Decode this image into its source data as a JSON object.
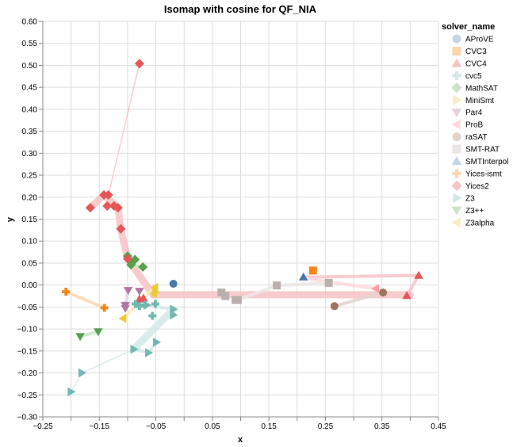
{
  "chart_data": {
    "type": "scatter",
    "title": "Isomap with cosine for QF_NIA",
    "xlabel": "x",
    "ylabel": "y",
    "xlim": [
      -0.25,
      0.45
    ],
    "ylim": [
      -0.3,
      0.6
    ],
    "grid": true,
    "x_ticks": [
      "−0.25",
      "−0.15",
      "−0.05",
      "0.05",
      "0.15",
      "0.25",
      "0.35",
      "0.45"
    ],
    "x_tick_values": [
      -0.25,
      -0.15,
      -0.05,
      0.05,
      0.15,
      0.25,
      0.35,
      0.45
    ],
    "x_grid_values": [
      -0.25,
      -0.2,
      -0.15,
      -0.1,
      -0.05,
      0.0,
      0.05,
      0.1,
      0.15,
      0.2,
      0.25,
      0.3,
      0.35,
      0.4,
      0.45
    ],
    "y_ticks": [
      "0.60",
      "0.55",
      "0.50",
      "0.45",
      "0.40",
      "0.35",
      "0.30",
      "0.25",
      "0.20",
      "0.15",
      "0.10",
      "0.05",
      "0.00",
      "−0.05",
      "−0.10",
      "−0.15",
      "−0.20",
      "−0.25",
      "−0.30"
    ],
    "y_tick_values": [
      0.6,
      0.55,
      0.5,
      0.45,
      0.4,
      0.35,
      0.3,
      0.25,
      0.2,
      0.15,
      0.1,
      0.05,
      0.0,
      -0.05,
      -0.1,
      -0.15,
      -0.2,
      -0.25,
      -0.3
    ],
    "legend": {
      "title": "solver_name",
      "placement": "right"
    },
    "series": [
      {
        "name": "AProVE",
        "shape": "circle",
        "color": "#4c78a8",
        "light": "#c5d4e6",
        "points": [
          [
            -0.019,
            0.003
          ]
        ]
      },
      {
        "name": "CVC3",
        "shape": "square",
        "color": "#f58518",
        "light": "#fdd6b0",
        "points": [
          [
            0.228,
            0.033
          ]
        ]
      },
      {
        "name": "CVC4",
        "shape": "triangle-up",
        "color": "#e45756",
        "light": "#f7c3c3",
        "points": [
          [
            -0.079,
            -0.032
          ],
          [
            -0.072,
            -0.03
          ],
          [
            0.394,
            -0.024
          ],
          [
            0.415,
            0.022
          ]
        ]
      },
      {
        "name": "cvc5",
        "shape": "cross",
        "color": "#72b7b2",
        "light": "#d2e9e7",
        "points": [
          [
            -0.086,
            -0.043
          ],
          [
            -0.069,
            -0.045
          ],
          [
            -0.079,
            -0.048
          ],
          [
            -0.051,
            -0.043
          ],
          [
            -0.056,
            -0.07
          ]
        ]
      },
      {
        "name": "MathSAT",
        "shape": "diamond",
        "color": "#54a24b",
        "light": "#cde4ca",
        "points": [
          [
            -0.1,
            0.066
          ],
          [
            -0.087,
            0.058
          ],
          [
            -0.094,
            0.046
          ],
          [
            -0.073,
            0.041
          ]
        ]
      },
      {
        "name": "MiniSmt",
        "shape": "triangle-right",
        "color": "#eeca3b",
        "light": "#f9ecbf",
        "points": [
          [
            -0.051,
            -0.017
          ]
        ]
      },
      {
        "name": "Par4",
        "shape": "triangle-down",
        "color": "#b279a2",
        "light": "#e6d2e0",
        "points": [
          [
            -0.099,
            -0.012
          ],
          [
            -0.079,
            -0.014
          ],
          [
            -0.104,
            -0.046
          ],
          [
            -0.104,
            -0.053
          ]
        ]
      },
      {
        "name": "ProB",
        "shape": "triangle-left",
        "color": "#ff9da6",
        "light": "#ffd9dc",
        "points": [
          [
            0.339,
            -0.008
          ]
        ]
      },
      {
        "name": "raSAT",
        "shape": "circle",
        "color": "#9d755d",
        "light": "#e0d3cb",
        "points": [
          [
            0.352,
            -0.017
          ],
          [
            0.266,
            -0.048
          ]
        ]
      },
      {
        "name": "SMT-RAT",
        "shape": "square",
        "color": "#bab0ac",
        "light": "#eae6e5",
        "points": [
          [
            0.066,
            -0.017
          ],
          [
            0.073,
            -0.025
          ],
          [
            0.091,
            -0.034
          ],
          [
            0.095,
            -0.034
          ],
          [
            0.164,
            -0.001
          ],
          [
            0.256,
            0.005
          ]
        ]
      },
      {
        "name": "SMTInterpol",
        "shape": "triangle-up",
        "color": "#4c78a8",
        "light": "#c5d4e6",
        "points": [
          [
            0.211,
            0.018
          ]
        ]
      },
      {
        "name": "Yices-ismt",
        "shape": "cross",
        "color": "#f58518",
        "light": "#fdd6b0",
        "points": [
          [
            -0.209,
            -0.015
          ],
          [
            -0.141,
            -0.052
          ]
        ]
      },
      {
        "name": "Yices2",
        "shape": "diamond",
        "color": "#e45756",
        "light": "#f7c3c3",
        "points": [
          [
            -0.079,
            0.504
          ],
          [
            -0.134,
            0.205
          ],
          [
            -0.142,
            0.205
          ],
          [
            -0.166,
            0.176
          ],
          [
            -0.136,
            0.18
          ],
          [
            -0.124,
            0.18
          ],
          [
            -0.117,
            0.176
          ],
          [
            -0.112,
            0.128
          ],
          [
            -0.1,
            0.06
          ]
        ]
      },
      {
        "name": "Z3",
        "shape": "triangle-right",
        "color": "#72b7b2",
        "light": "#d2e9e7",
        "points": [
          [
            -0.066,
            -0.046
          ],
          [
            -0.019,
            -0.055
          ],
          [
            -0.019,
            -0.068
          ],
          [
            -0.089,
            -0.146
          ],
          [
            -0.063,
            -0.154
          ],
          [
            -0.049,
            -0.13
          ],
          [
            -0.181,
            -0.2
          ],
          [
            -0.2,
            -0.243
          ]
        ]
      },
      {
        "name": "Z3++",
        "shape": "triangle-down",
        "color": "#54a24b",
        "light": "#cde4ca",
        "points": [
          [
            -0.184,
            -0.117
          ],
          [
            -0.152,
            -0.106
          ]
        ]
      },
      {
        "name": "Z3alpha",
        "shape": "triangle-left",
        "color": "#eeca3b",
        "light": "#f9ecbf",
        "points": [
          [
            -0.108,
            -0.076
          ],
          [
            -0.052,
            -0.005
          ],
          [
            -0.054,
            -0.019
          ]
        ]
      }
    ],
    "trails": [
      {
        "series": "Yices2",
        "width": "thin",
        "path": [
          [
            -0.079,
            0.504
          ],
          [
            -0.134,
            0.205
          ]
        ]
      },
      {
        "series": "Yices2",
        "width": "thick",
        "path": [
          [
            -0.166,
            0.176
          ],
          [
            -0.142,
            0.205
          ],
          [
            -0.117,
            0.176
          ],
          [
            -0.112,
            0.128
          ],
          [
            -0.1,
            0.06
          ],
          [
            -0.055,
            -0.022
          ],
          [
            0.4,
            -0.022
          ]
        ]
      },
      {
        "series": "CVC4",
        "width": "mid",
        "path": [
          [
            0.211,
            0.018
          ],
          [
            0.415,
            0.022
          ],
          [
            0.394,
            -0.024
          ]
        ]
      },
      {
        "series": "ProB",
        "width": "mid",
        "path": [
          [
            0.211,
            0.016
          ],
          [
            0.339,
            -0.008
          ]
        ]
      },
      {
        "series": "SMT-RAT",
        "width": "mid",
        "path": [
          [
            0.095,
            -0.034
          ],
          [
            0.164,
            -0.001
          ],
          [
            0.256,
            0.005
          ]
        ]
      },
      {
        "series": "raSAT",
        "width": "mid",
        "path": [
          [
            0.266,
            -0.048
          ],
          [
            0.352,
            -0.017
          ]
        ]
      },
      {
        "series": "Yices-ismt",
        "width": "mid",
        "path": [
          [
            -0.209,
            -0.015
          ],
          [
            -0.141,
            -0.052
          ]
        ]
      },
      {
        "series": "Z3++",
        "width": "mid",
        "path": [
          [
            -0.184,
            -0.117
          ],
          [
            -0.152,
            -0.106
          ]
        ]
      },
      {
        "series": "Par4",
        "width": "mid",
        "path": [
          [
            -0.099,
            -0.012
          ],
          [
            -0.104,
            -0.046
          ]
        ]
      },
      {
        "series": "Z3alpha",
        "width": "mid",
        "path": [
          [
            -0.108,
            -0.076
          ],
          [
            -0.052,
            -0.005
          ]
        ]
      },
      {
        "series": "MathSAT",
        "width": "mid",
        "path": [
          [
            -0.094,
            0.046
          ],
          [
            -0.073,
            0.041
          ]
        ]
      },
      {
        "series": "Z3",
        "width": "thick",
        "path": [
          [
            -0.019,
            -0.055
          ],
          [
            -0.089,
            -0.146
          ]
        ]
      },
      {
        "series": "Z3",
        "width": "thin",
        "path": [
          [
            -0.089,
            -0.146
          ],
          [
            -0.181,
            -0.2
          ],
          [
            -0.2,
            -0.243
          ]
        ]
      },
      {
        "series": "Z3",
        "width": "mid",
        "path": [
          [
            -0.089,
            -0.146
          ],
          [
            -0.063,
            -0.154
          ],
          [
            -0.049,
            -0.13
          ]
        ]
      },
      {
        "series": "Z3",
        "width": "mid",
        "path": [
          [
            -0.066,
            -0.046
          ],
          [
            -0.019,
            -0.055
          ],
          [
            -0.019,
            -0.068
          ]
        ]
      }
    ]
  }
}
